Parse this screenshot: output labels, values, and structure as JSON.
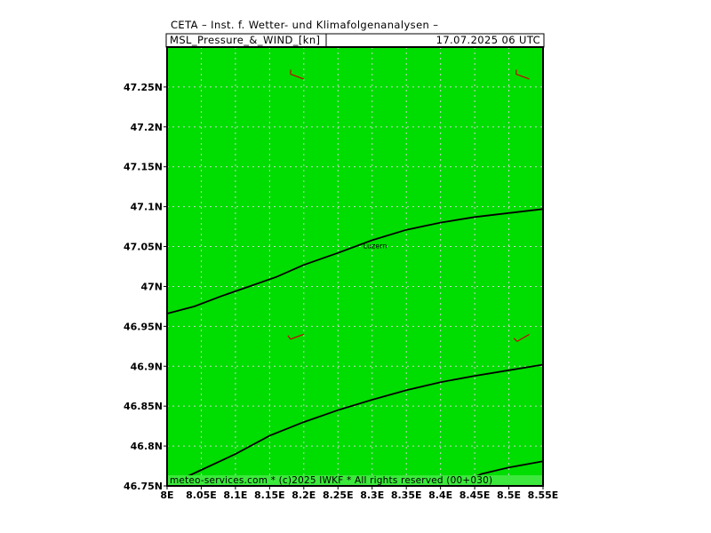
{
  "header": {
    "title": "CETA – Inst. f. Wetter- und Klimafolgenanalysen –",
    "product": "MSL_Pressure_&_WIND_[kn]",
    "datetime": "17.07.2025 06 UTC"
  },
  "map": {
    "lon_range": [
      8.0,
      8.55
    ],
    "lat_range": [
      46.75,
      47.3
    ],
    "background_color": "#00dd00",
    "grid": true,
    "grid_color": "#d0d0d0",
    "isobar_color": "#000000",
    "barb_color": "#cc0000",
    "x_ticks": [
      {
        "value": 8.0,
        "label": "8E"
      },
      {
        "value": 8.05,
        "label": "8.05E"
      },
      {
        "value": 8.1,
        "label": "8.1E"
      },
      {
        "value": 8.15,
        "label": "8.15E"
      },
      {
        "value": 8.2,
        "label": "8.2E"
      },
      {
        "value": 8.25,
        "label": "8.25E"
      },
      {
        "value": 8.3,
        "label": "8.3E"
      },
      {
        "value": 8.35,
        "label": "8.35E"
      },
      {
        "value": 8.4,
        "label": "8.4E"
      },
      {
        "value": 8.45,
        "label": "8.45E"
      },
      {
        "value": 8.5,
        "label": "8.5E"
      },
      {
        "value": 8.55,
        "label": "8.55E"
      }
    ],
    "y_ticks": [
      {
        "value": 46.75,
        "label": "46.75N"
      },
      {
        "value": 46.8,
        "label": "46.8N"
      },
      {
        "value": 46.85,
        "label": "46.85N"
      },
      {
        "value": 46.9,
        "label": "46.9N"
      },
      {
        "value": 46.95,
        "label": "46.95N"
      },
      {
        "value": 47.0,
        "label": "47N"
      },
      {
        "value": 47.05,
        "label": "47.05N"
      },
      {
        "value": 47.1,
        "label": "47.1N"
      },
      {
        "value": 47.15,
        "label": "47.15N"
      },
      {
        "value": 47.2,
        "label": "47.2N"
      },
      {
        "value": 47.25,
        "label": "47.25N"
      }
    ],
    "isobars": [
      [
        [
          8.0,
          46.966
        ],
        [
          8.04,
          46.975
        ],
        [
          8.08,
          46.988
        ],
        [
          8.12,
          47.0
        ],
        [
          8.16,
          47.012
        ],
        [
          8.2,
          47.027
        ],
        [
          8.25,
          47.042
        ],
        [
          8.3,
          47.058
        ],
        [
          8.35,
          47.071
        ],
        [
          8.4,
          47.08
        ],
        [
          8.45,
          47.087
        ],
        [
          8.5,
          47.092
        ],
        [
          8.55,
          47.097
        ]
      ],
      [
        [
          8.0,
          46.75
        ],
        [
          8.05,
          46.77
        ],
        [
          8.1,
          46.79
        ],
        [
          8.15,
          46.813
        ],
        [
          8.2,
          46.83
        ],
        [
          8.25,
          46.845
        ],
        [
          8.3,
          46.858
        ],
        [
          8.35,
          46.87
        ],
        [
          8.4,
          46.88
        ],
        [
          8.45,
          46.888
        ],
        [
          8.5,
          46.895
        ],
        [
          8.55,
          46.902
        ]
      ],
      [
        [
          8.42,
          46.75
        ],
        [
          8.46,
          46.765
        ],
        [
          8.5,
          46.773
        ],
        [
          8.55,
          46.781
        ]
      ]
    ],
    "wind_barbs": [
      {
        "lon": 8.2,
        "lat": 47.26,
        "dir": 290
      },
      {
        "lon": 8.53,
        "lat": 47.26,
        "dir": 290
      },
      {
        "lon": 8.2,
        "lat": 46.94,
        "dir": 250
      },
      {
        "lon": 8.53,
        "lat": 46.94,
        "dir": 240
      }
    ],
    "cities": [
      {
        "name": "Luzern",
        "lon": 8.3,
        "lat": 47.05
      }
    ]
  },
  "footer": {
    "credit": "meteo-services.com * (c)2025 IWKF * All rights reserved (00+030)"
  }
}
